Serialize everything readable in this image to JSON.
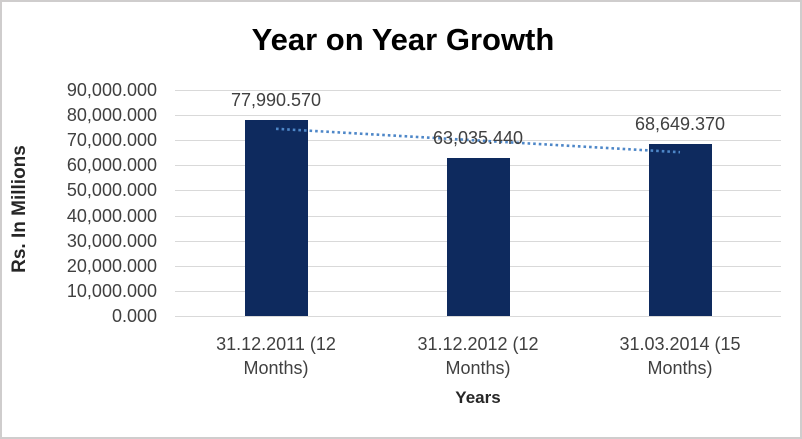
{
  "frame": {
    "background": "#ffffff",
    "border_color": "#cfcdcd"
  },
  "chart_data": {
    "type": "bar",
    "title": "Year on Year Growth",
    "xlabel": "Years",
    "ylabel": "Rs. In Millions",
    "categories": [
      "31.12.2011 (12 Months)",
      "31.12.2012 (12 Months)",
      "31.03.2014 (15 Months)"
    ],
    "values": [
      77990.57,
      63035.44,
      68649.37
    ],
    "data_labels": [
      "77,990.570",
      "63,035.440",
      "68,649.370"
    ],
    "ylim": [
      0,
      90000
    ],
    "ytick_step": 10000,
    "ytick_labels": [
      "0.000",
      "10,000.000",
      "20,000.000",
      "30,000.000",
      "40,000.000",
      "50,000.000",
      "60,000.000",
      "70,000.000",
      "80,000.000",
      "90,000.000"
    ],
    "grid": true,
    "legend": "none",
    "trendline": {
      "type": "linear",
      "style": "dotted",
      "span": "bar1-center-to-bar3-center"
    },
    "colors": {
      "bar": "#0e2a5e",
      "gridline": "#d9d9d9",
      "axis_line": "#d9d9d9",
      "trendline": "#4e87c8",
      "label_text": "#404040",
      "title_text": "#000000"
    }
  }
}
